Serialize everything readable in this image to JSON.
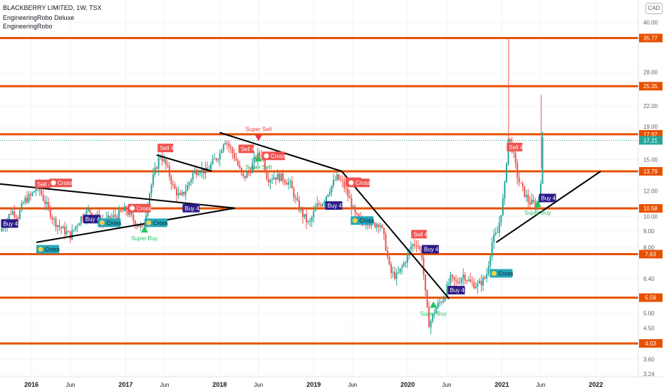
{
  "header": {
    "symbol_line": "BLACKBERRY LIMITED, 1W, TSX",
    "indicator_1": "EngineeringRobo Deluxe",
    "indicator_2": "EngineeringRobo",
    "currency": "CAD"
  },
  "chart_data": {
    "type": "candlestick",
    "title": "BLACKBERRY LIMITED, 1W, TSX",
    "y_scale": "log",
    "ylim": [
      3.24,
      46
    ],
    "x_range": [
      "2015-09-01",
      "2022-06-15"
    ],
    "y_tick_labels": [
      "40.00",
      "28.00",
      "22.00",
      "19.00",
      "15.00",
      "12.00",
      "10.00",
      "9.00",
      "8.00",
      "6.40",
      "5.00",
      "4.50",
      "3.60",
      "3.24"
    ],
    "y_tick_values": [
      40,
      28,
      22,
      19,
      15,
      12,
      10,
      9,
      8,
      6.4,
      5,
      4.5,
      3.6,
      3.24
    ],
    "x_ticks": [
      {
        "label": "2016",
        "date": "2016-01-01",
        "bold": true
      },
      {
        "label": "Jun",
        "date": "2016-06-01",
        "bold": false
      },
      {
        "label": "2017",
        "date": "2017-01-01",
        "bold": true
      },
      {
        "label": "Jun",
        "date": "2017-06-01",
        "bold": false
      },
      {
        "label": "2018",
        "date": "2018-01-01",
        "bold": true
      },
      {
        "label": "Jun",
        "date": "2018-06-01",
        "bold": false
      },
      {
        "label": "2019",
        "date": "2019-01-01",
        "bold": true
      },
      {
        "label": "Jun",
        "date": "2019-06-01",
        "bold": false
      },
      {
        "label": "2020",
        "date": "2020-01-01",
        "bold": true
      },
      {
        "label": "Jun",
        "date": "2020-06-01",
        "bold": false
      },
      {
        "label": "2021",
        "date": "2021-01-01",
        "bold": true
      },
      {
        "label": "Jun",
        "date": "2021-06-01",
        "bold": false
      },
      {
        "label": "2022",
        "date": "2022-01-01",
        "bold": true
      }
    ],
    "horizontal_levels": [
      {
        "value": 35.77,
        "label": "35.77"
      },
      {
        "value": 25.35,
        "label": "25.35"
      },
      {
        "value": 17.97,
        "label": "17.97"
      },
      {
        "value": 13.79,
        "label": "13.79"
      },
      {
        "value": 10.58,
        "label": "10.58"
      },
      {
        "value": 7.63,
        "label": "7.63"
      },
      {
        "value": 5.59,
        "label": "5.59"
      },
      {
        "value": 4.03,
        "label": "4.03"
      }
    ],
    "last_price": {
      "value": 17.21,
      "label": "17.21"
    },
    "level_color": "#e65100",
    "up_color": "#26a69a",
    "down_color": "#ef5350",
    "trend_lines": [
      {
        "from": [
          "2015-09-01",
          12.6
        ],
        "to": [
          "2018-03-01",
          10.6
        ]
      },
      {
        "from": [
          "2016-01-20",
          8.3
        ],
        "to": [
          "2018-03-01",
          10.6
        ]
      },
      {
        "from": [
          "2017-05-01",
          15.5
        ],
        "to": [
          "2017-12-01",
          13.8
        ]
      },
      {
        "from": [
          "2018-01-01",
          18.2
        ],
        "to": [
          "2019-04-20",
          13.8
        ]
      },
      {
        "from": [
          "2019-04-20",
          13.8
        ],
        "to": [
          "2020-06-10",
          5.55
        ]
      },
      {
        "from": [
          "2020-12-10",
          8.3
        ],
        "to": [
          "2022-01-20",
          13.8
        ]
      }
    ],
    "signals": [
      {
        "text": "Sell 4",
        "type": "sell",
        "date": "2016-01-15",
        "value": 12.6
      },
      {
        "text": "Cross",
        "type": "cross-red",
        "date": "2016-03-10",
        "value": 12.7
      },
      {
        "text": "Buy 4",
        "type": "buy",
        "date": "2015-09-05",
        "value": 9.5
      },
      {
        "text": "Cross",
        "type": "cross-teal",
        "date": "2016-01-20",
        "value": 7.9
      },
      {
        "text": "Buy 4",
        "type": "buy",
        "date": "2016-07-20",
        "value": 9.8
      },
      {
        "text": "Cross",
        "type": "cross-teal",
        "date": "2016-09-15",
        "value": 9.55
      },
      {
        "text": "Cross",
        "type": "cross-red",
        "date": "2017-01-10",
        "value": 10.6
      },
      {
        "text": "Cross",
        "type": "cross-teal",
        "date": "2017-03-15",
        "value": 9.55
      },
      {
        "text": "Sell 4",
        "type": "sell",
        "date": "2017-05-05",
        "value": 16.3
      },
      {
        "text": "Buy 4",
        "type": "buy",
        "date": "2017-08-10",
        "value": 10.6
      },
      {
        "text": "Sell 4",
        "type": "sell",
        "date": "2018-03-15",
        "value": 16.2
      },
      {
        "text": "Cross",
        "type": "cross-red",
        "date": "2018-06-15",
        "value": 15.4
      },
      {
        "text": "Buy 4",
        "type": "buy",
        "date": "2019-02-15",
        "value": 10.8
      },
      {
        "text": "Sell 4",
        "type": "sell",
        "date": "2019-05-05",
        "value": 12.8
      },
      {
        "text": "Cross",
        "type": "cross-red",
        "date": "2019-05-10",
        "value": 12.7
      },
      {
        "text": "Cross",
        "type": "cross-teal",
        "date": "2019-05-25",
        "value": 9.7
      },
      {
        "text": "Sell 4",
        "type": "sell",
        "date": "2020-01-15",
        "value": 8.8
      },
      {
        "text": "Buy 4",
        "type": "buy",
        "date": "2020-02-25",
        "value": 7.9
      },
      {
        "text": "Buy 4",
        "type": "buy",
        "date": "2020-06-05",
        "value": 5.9
      },
      {
        "text": "Cross",
        "type": "cross-teal",
        "date": "2020-11-15",
        "value": 6.65
      },
      {
        "text": "Sell 4",
        "type": "sell",
        "date": "2021-01-20",
        "value": 16.4
      },
      {
        "text": "Buy 4",
        "type": "buy",
        "date": "2021-05-25",
        "value": 11.4
      }
    ],
    "arrows": [
      {
        "text": "Super Sell",
        "direction": "down",
        "date": "2018-06-01",
        "value": 17.9
      },
      {
        "text": "Super Buy",
        "direction": "up",
        "date": "2017-03-15",
        "value": 8.9
      },
      {
        "text": "Super Buy",
        "direction": "up",
        "date": "2020-04-10",
        "value": 5.2
      },
      {
        "text": "Super Sell",
        "direction": "up",
        "date": "2018-06-01",
        "value": 14.8
      },
      {
        "text": "Super Buy",
        "direction": "up",
        "date": "2021-05-20",
        "value": 10.7
      }
    ],
    "price_path": [
      [
        "2015-09-01",
        9.0
      ],
      [
        "2015-09-20",
        9.5
      ],
      [
        "2015-10-15",
        10.4
      ],
      [
        "2015-11-10",
        10.0
      ],
      [
        "2015-12-05",
        11.2
      ],
      [
        "2016-01-01",
        11.6
      ],
      [
        "2016-01-25",
        12.5
      ],
      [
        "2016-02-15",
        11.4
      ],
      [
        "2016-03-05",
        10.6
      ],
      [
        "2016-04-01",
        9.6
      ],
      [
        "2016-05-01",
        9.1
      ],
      [
        "2016-06-01",
        8.7
      ],
      [
        "2016-06-20",
        9.3
      ],
      [
        "2016-07-15",
        10.0
      ],
      [
        "2016-08-10",
        10.4
      ],
      [
        "2016-09-01",
        10.1
      ],
      [
        "2016-10-01",
        9.6
      ],
      [
        "2016-11-01",
        9.8
      ],
      [
        "2016-12-01",
        10.1
      ],
      [
        "2017-01-01",
        10.5
      ],
      [
        "2017-02-01",
        9.7
      ],
      [
        "2017-03-10",
        9.1
      ],
      [
        "2017-04-01",
        11.6
      ],
      [
        "2017-04-20",
        13.4
      ],
      [
        "2017-05-15",
        15.6
      ],
      [
        "2017-06-10",
        14.2
      ],
      [
        "2017-07-05",
        12.3
      ],
      [
        "2017-08-01",
        11.4
      ],
      [
        "2017-08-25",
        12.2
      ],
      [
        "2017-09-20",
        13.6
      ],
      [
        "2017-10-15",
        14.1
      ],
      [
        "2017-11-10",
        13.7
      ],
      [
        "2017-12-10",
        14.9
      ],
      [
        "2018-01-01",
        15.6
      ],
      [
        "2018-01-20",
        17.5
      ],
      [
        "2018-02-10",
        16.3
      ],
      [
        "2018-03-05",
        15.0
      ],
      [
        "2018-04-01",
        13.1
      ],
      [
        "2018-04-25",
        13.7
      ],
      [
        "2018-05-20",
        15.2
      ],
      [
        "2018-06-15",
        15.7
      ],
      [
        "2018-07-05",
        13.1
      ],
      [
        "2018-08-01",
        13.3
      ],
      [
        "2018-09-01",
        13.2
      ],
      [
        "2018-10-01",
        12.6
      ],
      [
        "2018-10-25",
        11.1
      ],
      [
        "2018-11-20",
        10.1
      ],
      [
        "2018-12-15",
        9.4
      ],
      [
        "2019-01-10",
        10.7
      ],
      [
        "2019-02-05",
        11.1
      ],
      [
        "2019-03-05",
        12.2
      ],
      [
        "2019-04-01",
        13.2
      ],
      [
        "2019-04-25",
        12.6
      ],
      [
        "2019-05-20",
        11.3
      ],
      [
        "2019-06-10",
        10.1
      ],
      [
        "2019-07-01",
        9.6
      ],
      [
        "2019-07-25",
        9.7
      ],
      [
        "2019-08-20",
        9.4
      ],
      [
        "2019-09-15",
        9.6
      ],
      [
        "2019-10-05",
        8.3
      ],
      [
        "2019-10-25",
        6.7
      ],
      [
        "2019-11-20",
        6.5
      ],
      [
        "2019-12-20",
        7.2
      ],
      [
        "2020-01-15",
        8.1
      ],
      [
        "2020-02-05",
        8.3
      ],
      [
        "2020-02-25",
        7.6
      ],
      [
        "2020-03-15",
        5.2
      ],
      [
        "2020-03-25",
        4.6
      ],
      [
        "2020-04-20",
        5.2
      ],
      [
        "2020-05-20",
        5.6
      ],
      [
        "2020-06-15",
        6.4
      ],
      [
        "2020-07-10",
        6.2
      ],
      [
        "2020-08-05",
        6.6
      ],
      [
        "2020-09-01",
        6.2
      ],
      [
        "2020-10-01",
        6.1
      ],
      [
        "2020-11-01",
        6.5
      ],
      [
        "2020-11-25",
        8.4
      ],
      [
        "2020-12-15",
        8.9
      ],
      [
        "2021-01-10",
        11.8
      ],
      [
        "2021-01-25",
        17.5
      ],
      [
        "2021-02-10",
        16.2
      ],
      [
        "2021-03-05",
        13.0
      ],
      [
        "2021-03-25",
        12.0
      ],
      [
        "2021-04-15",
        11.1
      ],
      [
        "2021-05-05",
        10.9
      ],
      [
        "2021-05-20",
        10.7
      ],
      [
        "2021-06-01",
        13.0
      ],
      [
        "2021-06-08",
        17.2
      ]
    ],
    "spikes": [
      {
        "date": "2021-01-27",
        "high": 36.0
      },
      {
        "date": "2021-06-03",
        "high": 23.8
      }
    ]
  }
}
